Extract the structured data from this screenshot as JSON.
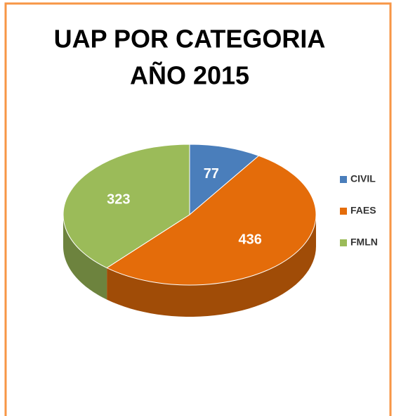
{
  "chart_data": {
    "type": "pie",
    "title": "UAP POR CATEGORIA",
    "subtitle": "AÑO 2015",
    "categories": [
      "CIVIL",
      "FAES",
      "FMLN"
    ],
    "values": [
      77,
      436,
      323
    ],
    "colors": [
      "#4a7ebb",
      "#e46c0a",
      "#9bbb59"
    ],
    "legend": "right"
  }
}
